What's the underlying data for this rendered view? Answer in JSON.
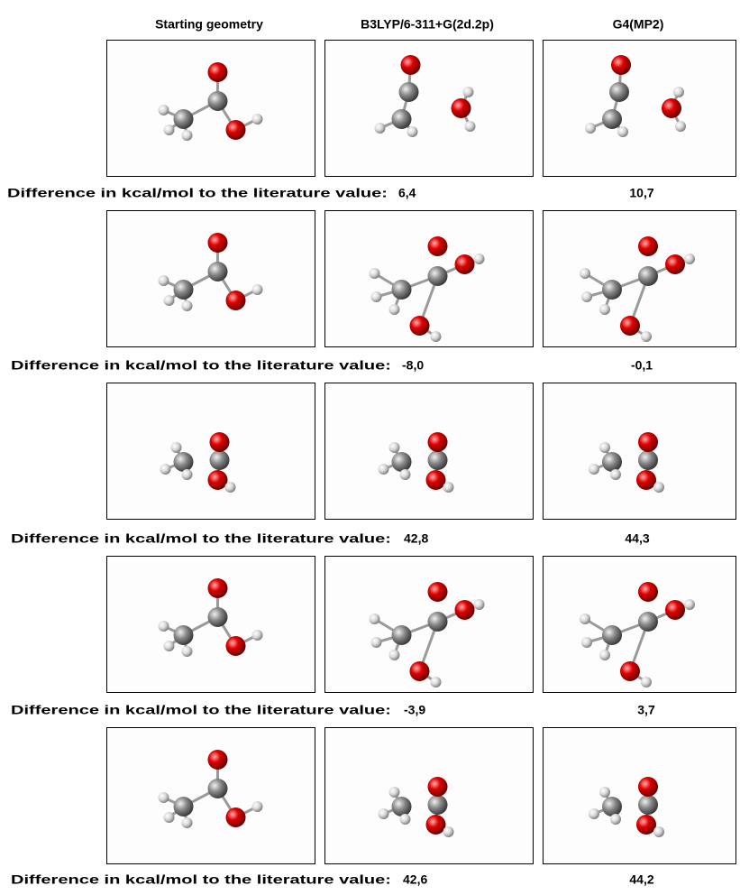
{
  "header": {
    "columns": [
      "Starting geometry",
      "B3LYP/6-311+G(2d.2p)",
      "G4(MP2)"
    ]
  },
  "rows": [
    {
      "caption": "Difference in kcal/mol to the literature value:",
      "values": [
        "6,4",
        "10,7"
      ]
    },
    {
      "caption": "Difference in kcal/mol to the literature value:",
      "values": [
        "-8,0",
        "-0,1"
      ]
    },
    {
      "caption": "Difference in kcal/mol to the literature value:",
      "values": [
        "42,8",
        "44,3"
      ]
    },
    {
      "caption": "Difference in kcal/mol to the literature value:",
      "values": [
        "-3,9",
        "3,7"
      ]
    },
    {
      "caption": "Difference in kcal/mol to the literature value:",
      "values": [
        "42,6",
        "44,2"
      ]
    }
  ]
}
